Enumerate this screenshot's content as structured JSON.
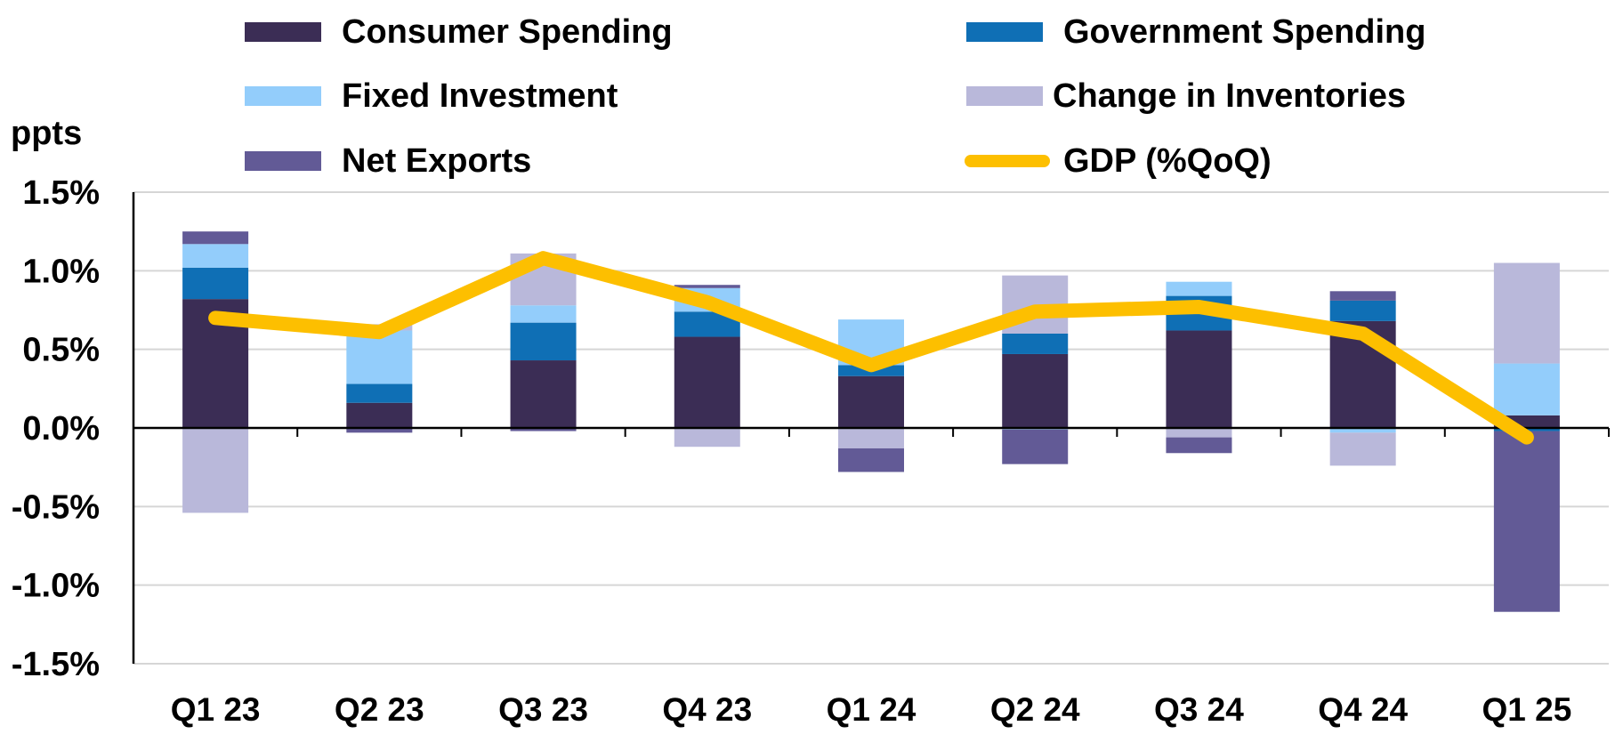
{
  "chart_data": {
    "type": "bar",
    "stacked": true,
    "unit_label": "ppts",
    "categories": [
      "Q1 23",
      "Q2 23",
      "Q3 23",
      "Q4 23",
      "Q1 24",
      "Q2 24",
      "Q3 24",
      "Q4 24",
      "Q1 25"
    ],
    "ylim": [
      -1.5,
      1.5
    ],
    "yticks": [
      1.5,
      1.0,
      0.5,
      0.0,
      -0.5,
      -1.0,
      -1.5
    ],
    "ytick_labels": [
      "1.5%",
      "1.0%",
      "0.5%",
      "0.0%",
      "-0.5%",
      "-1.0%",
      "-1.5%"
    ],
    "grid": true,
    "legend_position": "top",
    "series": [
      {
        "name": "Consumer Spending",
        "color": "#3b2d55",
        "values": [
          0.82,
          0.16,
          0.43,
          0.58,
          0.33,
          0.47,
          0.62,
          0.68,
          0.08
        ]
      },
      {
        "name": "Government Spending",
        "color": "#0f6fb5",
        "values": [
          0.2,
          0.12,
          0.24,
          0.16,
          0.07,
          0.13,
          0.22,
          0.13,
          -0.02
        ]
      },
      {
        "name": "Fixed Investment",
        "color": "#93cdfb",
        "values": [
          0.15,
          0.34,
          0.11,
          0.15,
          0.29,
          -0.01,
          0.09,
          -0.03,
          0.33
        ]
      },
      {
        "name": "Change in Inventories",
        "color": "#b9b8da",
        "values": [
          -0.54,
          0.04,
          0.33,
          -0.12,
          -0.13,
          0.37,
          -0.06,
          -0.21,
          0.64
        ]
      },
      {
        "name": "Net Exports",
        "color": "#625a96",
        "values": [
          0.08,
          -0.03,
          -0.02,
          0.02,
          -0.15,
          -0.22,
          -0.1,
          0.06,
          -1.15
        ]
      }
    ],
    "line": {
      "name": "GDP (%QoQ)",
      "color": "#fdbf00",
      "values": [
        0.7,
        0.61,
        1.08,
        0.8,
        0.4,
        0.74,
        0.77,
        0.6,
        -0.06
      ]
    },
    "legend": [
      {
        "label": "Consumer Spending",
        "kind": "bar",
        "color": "#3b2d55"
      },
      {
        "label": "Government Spending",
        "kind": "bar",
        "color": "#0f6fb5"
      },
      {
        "label": "Fixed Investment",
        "kind": "bar",
        "color": "#93cdfb"
      },
      {
        "label": "Change in Inventories",
        "kind": "bar",
        "color": "#b9b8da"
      },
      {
        "label": "Net Exports",
        "kind": "bar",
        "color": "#625a96"
      },
      {
        "label": "GDP (%QoQ)",
        "kind": "line",
        "color": "#fdbf00"
      }
    ]
  }
}
